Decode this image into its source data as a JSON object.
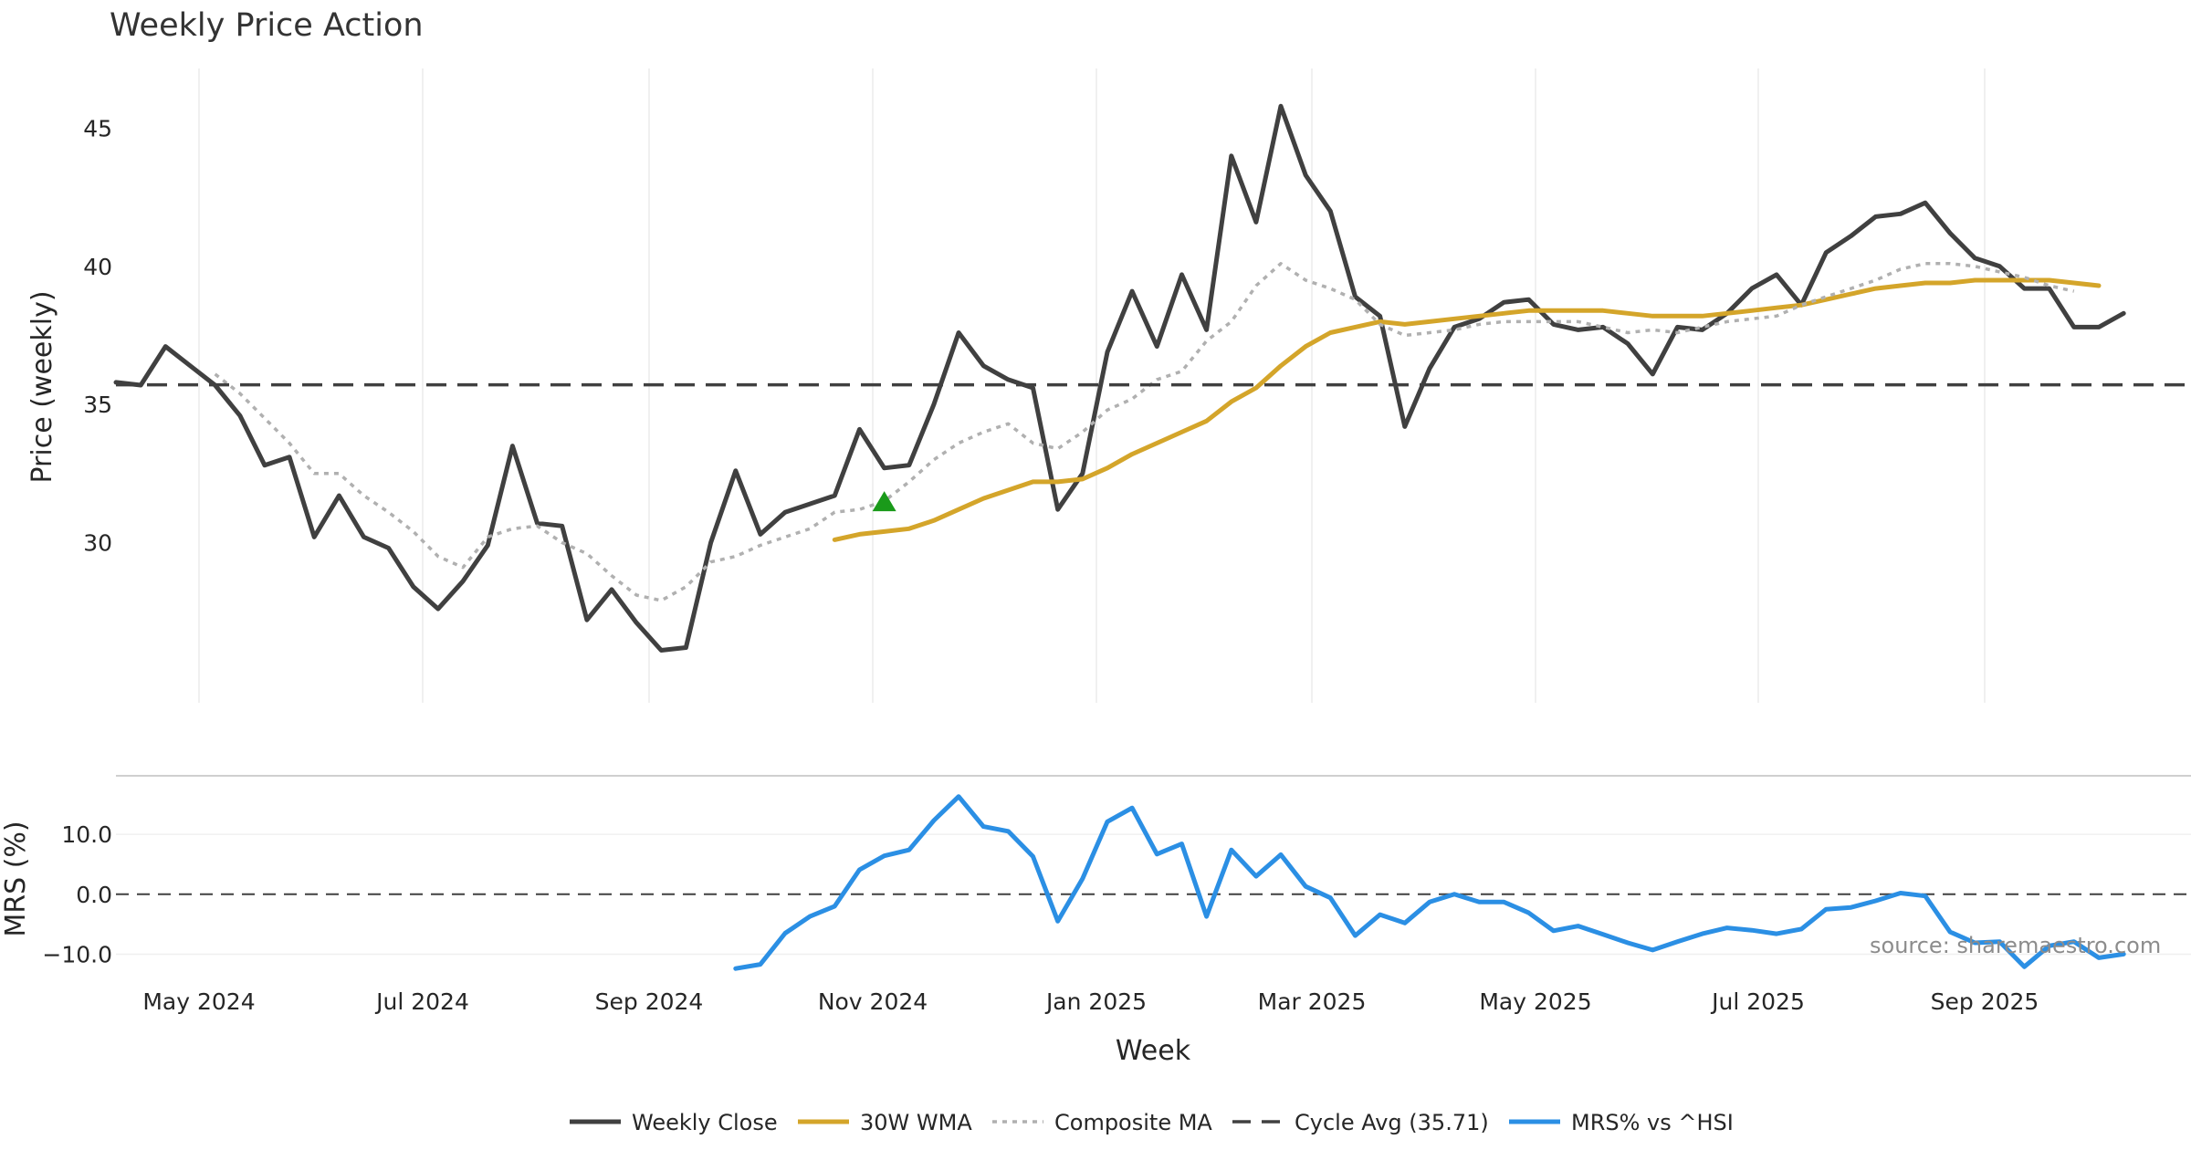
{
  "chart_data": {
    "type": "line",
    "title": "Weekly Price Action",
    "xlabel": "Week",
    "x_ticks": [
      "May 2024",
      "Jul 2024",
      "Sep 2024",
      "Nov 2024",
      "Jan 2025",
      "Mar 2025",
      "May 2025",
      "Jul 2025",
      "Sep 2025"
    ],
    "price_panel": {
      "ylabel": "Price (weekly)",
      "ylim": [
        24.2,
        47.0
      ],
      "y_ticks": [
        "30",
        "35",
        "40",
        "45"
      ],
      "grid": "vertical",
      "series": [
        {
          "name": "Weekly Close",
          "color": "#404040",
          "style": "solid",
          "values": [
            35.8,
            35.7,
            37.1,
            36.4,
            35.7,
            34.6,
            32.8,
            33.1,
            30.2,
            31.7,
            30.2,
            29.8,
            28.4,
            27.6,
            28.6,
            29.9,
            33.5,
            30.7,
            30.6,
            27.2,
            28.3,
            27.1,
            26.1,
            26.2,
            30.0,
            32.6,
            30.3,
            31.1,
            31.4,
            31.7,
            34.1,
            32.7,
            32.8,
            35.0,
            37.6,
            36.4,
            35.9,
            35.6,
            31.2,
            32.5,
            36.9,
            39.1,
            37.1,
            39.7,
            37.7,
            44.0,
            41.6,
            45.8,
            43.3,
            42.0,
            38.9,
            38.2,
            34.2,
            36.3,
            37.8,
            38.1,
            38.7,
            38.8,
            37.9,
            37.7,
            37.8,
            37.2,
            36.1,
            37.8,
            37.7,
            38.3,
            39.2,
            39.7,
            38.6,
            40.5,
            41.1,
            41.8,
            41.9,
            42.3,
            41.2,
            40.3,
            40.0,
            39.2,
            39.2,
            37.8,
            37.8,
            38.3
          ]
        },
        {
          "name": "30W WMA",
          "color": "#d4a52a",
          "style": "solid",
          "start_index": 29,
          "values": [
            30.1,
            30.3,
            30.4,
            30.5,
            30.8,
            31.2,
            31.6,
            31.9,
            32.2,
            32.2,
            32.3,
            32.7,
            33.2,
            33.6,
            34.0,
            34.4,
            35.1,
            35.6,
            36.4,
            37.1,
            37.6,
            37.8,
            38.0,
            37.9,
            38.0,
            38.1,
            38.2,
            38.3,
            38.4,
            38.4,
            38.4,
            38.4,
            38.3,
            38.2,
            38.2,
            38.2,
            38.3,
            38.4,
            38.5,
            38.6,
            38.8,
            39.0,
            39.2,
            39.3,
            39.4,
            39.4,
            39.5,
            39.5,
            39.5,
            39.5,
            39.4,
            39.3
          ]
        },
        {
          "name": "Composite MA",
          "color": "#b0b0b0",
          "style": "dotted",
          "start_index": 4,
          "values": [
            36.1,
            35.4,
            34.5,
            33.6,
            32.5,
            32.5,
            31.7,
            31.1,
            30.4,
            29.5,
            29.1,
            30.2,
            30.5,
            30.6,
            30.0,
            29.6,
            28.8,
            28.1,
            27.9,
            28.4,
            29.3,
            29.5,
            29.9,
            30.2,
            30.5,
            31.1,
            31.2,
            31.5,
            32.2,
            33.0,
            33.6,
            34.0,
            34.3,
            33.6,
            33.4,
            34.0,
            34.8,
            35.2,
            35.9,
            36.2,
            37.3,
            38.0,
            39.3,
            40.1,
            39.5,
            39.2,
            38.8,
            37.9,
            37.5,
            37.6,
            37.7,
            37.9,
            38.0,
            38.0,
            38.0,
            38.0,
            37.8,
            37.6,
            37.7,
            37.6,
            37.8,
            38.0,
            38.1,
            38.2,
            38.6,
            38.9,
            39.2,
            39.5,
            39.9,
            40.1,
            40.1,
            40.0,
            39.8,
            39.6,
            39.3,
            39.1
          ]
        },
        {
          "name": "Cycle Avg (35.71)",
          "color": "#404040",
          "style": "dashed",
          "constant": 35.71
        }
      ],
      "markers": [
        {
          "type": "triangle-up",
          "color": "#1a9a1a",
          "index": 31,
          "value": 31.5
        }
      ]
    },
    "mrs_panel": {
      "ylabel": "MRS (%)",
      "ylim": [
        -14.5,
        19.0
      ],
      "y_ticks": [
        "10.0",
        "0.0",
        "−10.0"
      ],
      "reference_line": 0,
      "series": [
        {
          "name": "MRS% vs ^HSI",
          "color": "#2b8fe4",
          "style": "solid",
          "start_index": 25,
          "values": [
            -12.4,
            -11.7,
            -6.5,
            -3.7,
            -2.0,
            4.1,
            6.4,
            7.4,
            12.3,
            16.3,
            11.3,
            10.5,
            6.3,
            -4.5,
            2.6,
            12.1,
            14.4,
            6.7,
            8.4,
            -3.7,
            7.4,
            3.0,
            6.6,
            1.3,
            -0.6,
            -6.9,
            -3.4,
            -4.8,
            -1.3,
            0.0,
            -1.3,
            -1.3,
            -3.1,
            -6.1,
            -5.3,
            -6.7,
            -8.1,
            -9.3,
            -7.9,
            -6.6,
            -5.6,
            -6.0,
            -6.6,
            -5.8,
            -2.5,
            -2.2,
            -1.1,
            0.2,
            -0.3,
            -6.3,
            -8.1,
            -7.9,
            -12.1,
            -8.6,
            -7.9,
            -10.6,
            -10.0
          ]
        }
      ]
    },
    "legend": {
      "placement": "bottom-center",
      "entries": [
        "Weekly Close",
        "30W WMA",
        "Composite MA",
        "Cycle Avg (35.71)",
        "MRS% vs ^HSI"
      ]
    },
    "source_note": "source: sharemaestro.com"
  }
}
